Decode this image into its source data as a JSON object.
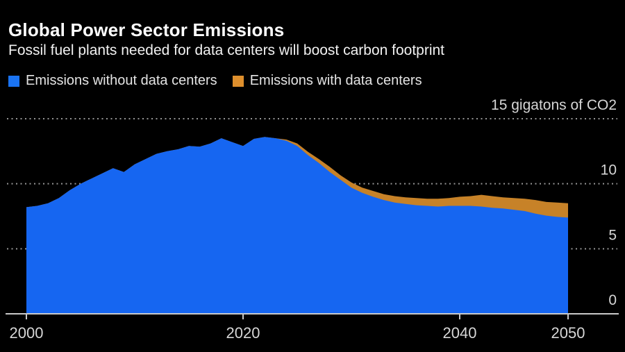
{
  "header": {
    "title": "Global Power Sector Emissions",
    "subtitle": "Fossil fuel plants needed for data centers will boost carbon footprint"
  },
  "legend": [
    {
      "label": "Emissions without data centers",
      "color": "#1a73f2"
    },
    {
      "label": "Emissions with data centers",
      "color": "#de8f2d"
    }
  ],
  "chart_data": {
    "type": "area",
    "title": "Global Power Sector Emissions",
    "subtitle": "Fossil fuel plants needed for data centers will boost carbon footprint",
    "unit_label": "15 gigatons of CO2",
    "xlabel": "",
    "ylabel": "gigatons of CO2",
    "xlim": [
      2000,
      2050
    ],
    "ylim": [
      0,
      15
    ],
    "grid": "horizontal-dotted",
    "legend_position": "top-left",
    "x": [
      2000,
      2001,
      2002,
      2003,
      2004,
      2005,
      2006,
      2007,
      2008,
      2009,
      2010,
      2011,
      2012,
      2013,
      2014,
      2015,
      2016,
      2017,
      2018,
      2019,
      2020,
      2021,
      2022,
      2023,
      2024,
      2025,
      2026,
      2027,
      2028,
      2029,
      2030,
      2031,
      2032,
      2033,
      2034,
      2035,
      2036,
      2037,
      2038,
      2039,
      2040,
      2041,
      2042,
      2043,
      2044,
      2045,
      2046,
      2047,
      2048,
      2049,
      2050
    ],
    "series": [
      {
        "name": "Emissions with data centers",
        "color": "#c78228",
        "values": [
          8.2,
          8.3,
          8.5,
          8.9,
          9.5,
          10.0,
          10.4,
          10.8,
          11.2,
          10.9,
          11.5,
          11.9,
          12.3,
          12.5,
          12.65,
          12.9,
          12.85,
          13.1,
          13.5,
          13.2,
          12.9,
          13.45,
          13.6,
          13.5,
          13.4,
          13.1,
          12.45,
          11.9,
          11.3,
          10.65,
          10.1,
          9.7,
          9.45,
          9.2,
          9.05,
          8.95,
          8.9,
          8.85,
          8.85,
          8.9,
          9.0,
          9.05,
          9.15,
          9.05,
          8.95,
          8.9,
          8.85,
          8.75,
          8.6,
          8.55,
          8.5
        ]
      },
      {
        "name": "Emissions without data centers",
        "color": "#1666f1",
        "values": [
          8.2,
          8.3,
          8.5,
          8.9,
          9.5,
          10.0,
          10.4,
          10.8,
          11.2,
          10.9,
          11.5,
          11.9,
          12.3,
          12.5,
          12.65,
          12.9,
          12.85,
          13.1,
          13.5,
          13.2,
          12.9,
          13.45,
          13.6,
          13.5,
          13.3,
          12.9,
          12.2,
          11.6,
          10.9,
          10.3,
          9.7,
          9.3,
          9.0,
          8.75,
          8.55,
          8.45,
          8.35,
          8.3,
          8.25,
          8.3,
          8.3,
          8.3,
          8.25,
          8.15,
          8.1,
          8.0,
          7.9,
          7.7,
          7.55,
          7.45,
          7.4
        ]
      }
    ],
    "yticks": [
      {
        "value": 15,
        "label": "15 gigatons of CO2"
      },
      {
        "value": 10,
        "label": "10"
      },
      {
        "value": 5,
        "label": "5"
      },
      {
        "value": 0,
        "label": "0"
      }
    ],
    "xticks": [
      {
        "value": 2000,
        "label": "2000"
      },
      {
        "value": 2020,
        "label": "2020"
      },
      {
        "value": 2040,
        "label": "2040"
      },
      {
        "value": 2050,
        "label": "2050"
      }
    ]
  }
}
